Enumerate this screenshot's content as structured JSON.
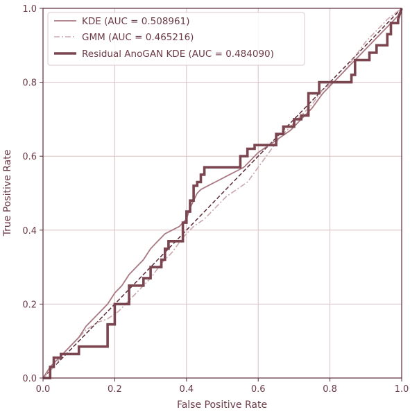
{
  "chart_data": {
    "type": "line",
    "title": "",
    "xlabel": "False Positive Rate",
    "ylabel": "True Positive Rate",
    "xlim": [
      0.0,
      1.0
    ],
    "ylim": [
      0.0,
      1.0
    ],
    "xticks": [
      "0.0",
      "0.2",
      "0.4",
      "0.6",
      "0.8",
      "1.0"
    ],
    "yticks": [
      "0.0",
      "0.2",
      "0.4",
      "0.6",
      "0.8",
      "1.0"
    ],
    "grid": true,
    "legend_position": "top-left",
    "diagonal_reference": {
      "x": [
        0,
        1
      ],
      "y": [
        0,
        1
      ],
      "color": "#5a2a38"
    },
    "series": [
      {
        "name": "KDE (AUC = 0.508961)",
        "color": "#a87882",
        "style": "solid",
        "x": [
          0,
          0.02,
          0.04,
          0.06,
          0.08,
          0.1,
          0.12,
          0.14,
          0.16,
          0.18,
          0.2,
          0.22,
          0.24,
          0.26,
          0.28,
          0.3,
          0.32,
          0.34,
          0.36,
          0.38,
          0.4,
          0.41,
          0.42,
          0.43,
          0.44,
          0.46,
          0.48,
          0.5,
          0.52,
          0.54,
          0.56,
          0.58,
          0.6,
          0.63,
          0.66,
          0.69,
          0.72,
          0.75,
          0.78,
          0.81,
          0.84,
          0.87,
          0.9,
          0.93,
          0.96,
          0.99,
          1.0
        ],
        "y": [
          0,
          0.03,
          0.05,
          0.07,
          0.09,
          0.11,
          0.14,
          0.16,
          0.18,
          0.2,
          0.23,
          0.25,
          0.28,
          0.3,
          0.32,
          0.35,
          0.37,
          0.39,
          0.4,
          0.41,
          0.43,
          0.46,
          0.48,
          0.5,
          0.51,
          0.52,
          0.53,
          0.54,
          0.55,
          0.56,
          0.57,
          0.59,
          0.61,
          0.63,
          0.65,
          0.67,
          0.7,
          0.73,
          0.77,
          0.8,
          0.83,
          0.86,
          0.89,
          0.92,
          0.95,
          0.98,
          1.0
        ]
      },
      {
        "name": "GMM (AUC = 0.465216)",
        "color": "#c9a6ab",
        "style": "dashdot",
        "x": [
          0,
          0.03,
          0.06,
          0.09,
          0.12,
          0.15,
          0.18,
          0.21,
          0.24,
          0.27,
          0.3,
          0.33,
          0.36,
          0.39,
          0.42,
          0.45,
          0.48,
          0.51,
          0.54,
          0.57,
          0.6,
          0.63,
          0.66,
          0.69,
          0.72,
          0.75,
          0.78,
          0.81,
          0.84,
          0.87,
          0.9,
          0.93,
          0.96,
          1.0
        ],
        "y": [
          0,
          0.03,
          0.07,
          0.1,
          0.13,
          0.15,
          0.16,
          0.18,
          0.21,
          0.24,
          0.27,
          0.31,
          0.34,
          0.38,
          0.41,
          0.43,
          0.46,
          0.49,
          0.51,
          0.53,
          0.57,
          0.61,
          0.65,
          0.68,
          0.71,
          0.74,
          0.78,
          0.8,
          0.83,
          0.87,
          0.91,
          0.94,
          0.97,
          1.0
        ]
      },
      {
        "name": "Residual AnoGAN KDE (AUC = 0.484090)",
        "color": "#7b4550",
        "style": "solid-thick",
        "x": [
          0,
          0.02,
          0.02,
          0.03,
          0.03,
          0.05,
          0.05,
          0.1,
          0.1,
          0.18,
          0.18,
          0.2,
          0.2,
          0.24,
          0.24,
          0.28,
          0.28,
          0.3,
          0.3,
          0.33,
          0.33,
          0.34,
          0.34,
          0.35,
          0.35,
          0.39,
          0.39,
          0.4,
          0.4,
          0.41,
          0.41,
          0.42,
          0.42,
          0.43,
          0.43,
          0.44,
          0.44,
          0.45,
          0.45,
          0.47,
          0.47,
          0.55,
          0.55,
          0.57,
          0.57,
          0.59,
          0.59,
          0.65,
          0.65,
          0.67,
          0.67,
          0.7,
          0.7,
          0.72,
          0.72,
          0.74,
          0.74,
          0.77,
          0.77,
          0.78,
          0.78,
          0.86,
          0.86,
          0.87,
          0.87,
          0.91,
          0.91,
          0.93,
          0.93,
          0.96,
          0.96,
          0.97,
          0.97,
          0.99,
          0.99,
          1.0
        ],
        "y": [
          0,
          0,
          0.03,
          0.03,
          0.055,
          0.055,
          0.065,
          0.065,
          0.085,
          0.085,
          0.145,
          0.145,
          0.2,
          0.2,
          0.25,
          0.25,
          0.27,
          0.27,
          0.3,
          0.3,
          0.32,
          0.32,
          0.35,
          0.35,
          0.37,
          0.37,
          0.42,
          0.42,
          0.45,
          0.45,
          0.48,
          0.48,
          0.52,
          0.52,
          0.53,
          0.53,
          0.55,
          0.55,
          0.57,
          0.57,
          0.57,
          0.57,
          0.6,
          0.6,
          0.62,
          0.62,
          0.63,
          0.63,
          0.66,
          0.66,
          0.68,
          0.68,
          0.7,
          0.7,
          0.71,
          0.71,
          0.77,
          0.77,
          0.8,
          0.8,
          0.8,
          0.8,
          0.82,
          0.82,
          0.86,
          0.86,
          0.88,
          0.88,
          0.9,
          0.9,
          0.93,
          0.93,
          0.96,
          0.96,
          0.97,
          1.0
        ]
      }
    ]
  }
}
